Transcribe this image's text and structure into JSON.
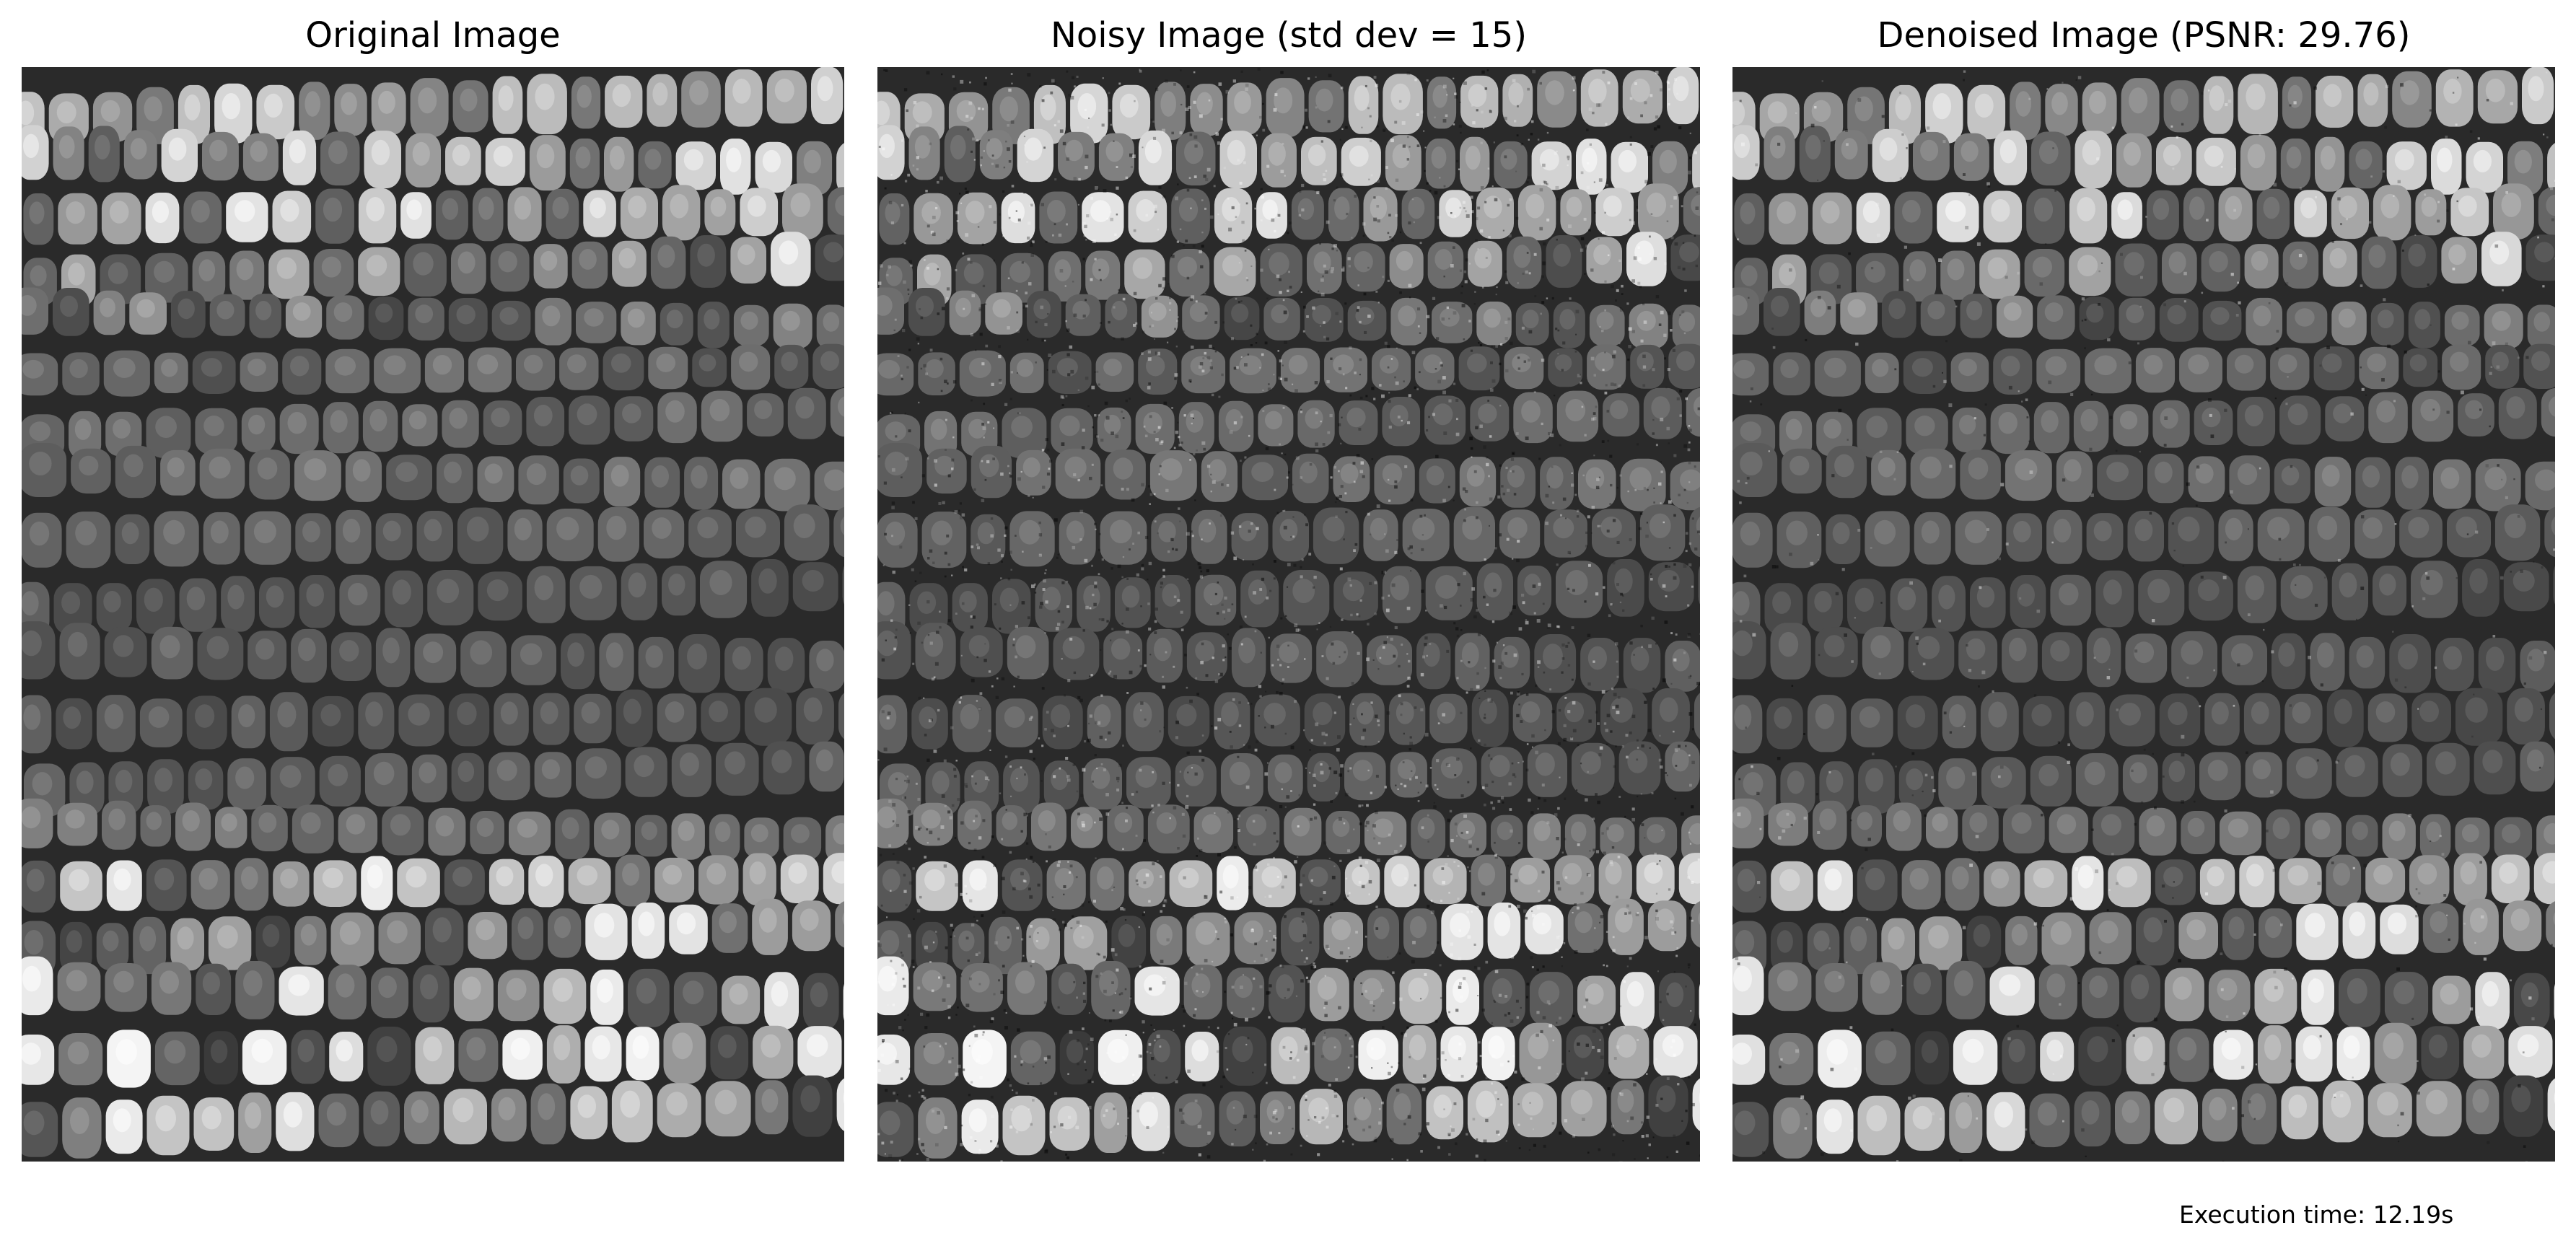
{
  "figure": {
    "panels": [
      {
        "title": "Original Image",
        "noise": 0,
        "brightness": 1.0
      },
      {
        "title": "Noisy Image (std dev = 15)",
        "noise": 0.35,
        "brightness": 1.0
      },
      {
        "title": "Denoised Image (PSNR: 29.76)",
        "noise": 0.06,
        "brightness": 0.97
      }
    ],
    "execution_time_text": "Execution time: 12.19s"
  },
  "image_description": {
    "subject": "grayscale close-up of corn cob kernels",
    "colormap": "gray"
  }
}
